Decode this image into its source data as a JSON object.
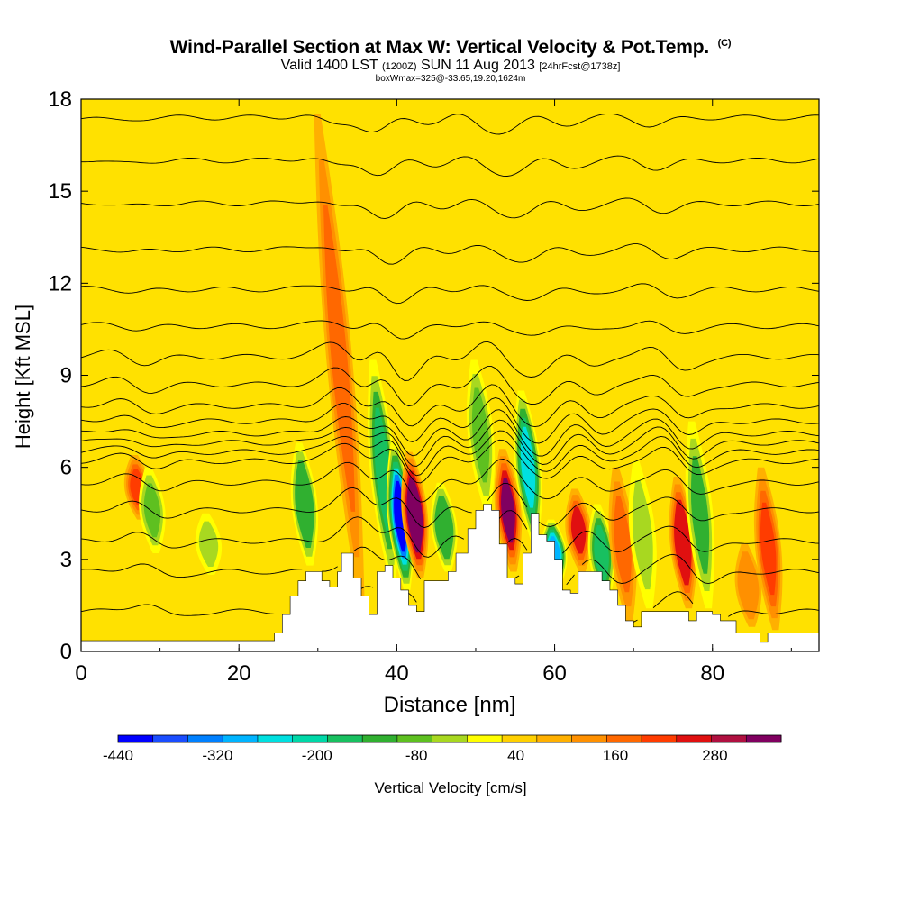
{
  "header": {
    "title": "Wind-Parallel Section at Max W: Vertical Velocity & Pot.Temp.",
    "copyright": "(C)",
    "valid_prefix": "Valid 1400 LST",
    "valid_utc": "(1200Z)",
    "valid_date": "SUN 11 Aug 2013",
    "forecast": "[24hrFcst@1738z]",
    "box_info": "boxWmax=325@-33.65,19.20,1624m"
  },
  "colors": {
    "scale": [
      "#0000ff",
      "#1a4dff",
      "#0080ff",
      "#00b4ff",
      "#00e0e0",
      "#00d8a8",
      "#18c060",
      "#30b030",
      "#5ec020",
      "#a8d820",
      "#ffff00",
      "#ffd000",
      "#ffb000",
      "#ff9000",
      "#ff6800",
      "#ff3c00",
      "#e01010",
      "#b01040",
      "#800060"
    ],
    "background_field": "#ffe100",
    "terrain": "#ffffff"
  },
  "chart_data": {
    "type": "cross-section",
    "title": "Wind-Parallel Section at Max W: Vertical Velocity & Pot.Temp.",
    "xlabel": "Distance [nm]",
    "ylabel": "Height [Kft MSL]",
    "xlim": [
      0,
      93.5
    ],
    "ylim": [
      0,
      18
    ],
    "x_ticks": [
      "0",
      "20",
      "40",
      "60",
      "80"
    ],
    "x_tick_values": [
      0,
      20,
      40,
      60,
      80
    ],
    "y_ticks": [
      "0",
      "3",
      "6",
      "9",
      "12",
      "15",
      "18"
    ],
    "y_tick_values": [
      0,
      3,
      6,
      9,
      12,
      15,
      18
    ],
    "colorbar": {
      "label": "Vertical Velocity [cm/s]",
      "min": -440,
      "max": 320,
      "step": 40,
      "tick_labels": [
        "-440",
        "-320",
        "-200",
        "-80",
        "40",
        "160",
        "280"
      ],
      "tick_values": [
        -440,
        -320,
        -200,
        -80,
        40,
        160,
        280
      ]
    },
    "terrain_height_kft": [
      [
        0,
        0.35
      ],
      [
        10,
        0.35
      ],
      [
        20,
        0.35
      ],
      [
        23.8,
        0.35
      ],
      [
        24.5,
        0.6
      ],
      [
        25.5,
        1.2
      ],
      [
        26.5,
        1.8
      ],
      [
        27.5,
        2.3
      ],
      [
        28.5,
        2.6
      ],
      [
        30,
        2.6
      ],
      [
        30.5,
        2.3
      ],
      [
        31.5,
        2.1
      ],
      [
        32.5,
        2.6
      ],
      [
        33,
        3.2
      ],
      [
        34,
        3.2
      ],
      [
        34.5,
        2.4
      ],
      [
        35.5,
        1.8
      ],
      [
        36.5,
        1.2
      ],
      [
        37.5,
        2.6
      ],
      [
        38.5,
        2.8
      ],
      [
        39.5,
        2.4
      ],
      [
        40.5,
        2.0
      ],
      [
        41.5,
        1.5
      ],
      [
        42.5,
        1.3
      ],
      [
        43.5,
        2.3
      ],
      [
        45,
        2.3
      ],
      [
        46.5,
        2.6
      ],
      [
        47.5,
        3.2
      ],
      [
        49,
        4.0
      ],
      [
        50,
        4.6
      ],
      [
        51,
        4.8
      ],
      [
        52,
        4.6
      ],
      [
        53,
        3.5
      ],
      [
        54,
        2.4
      ],
      [
        55,
        2.2
      ],
      [
        56,
        3.2
      ],
      [
        57,
        4.5
      ],
      [
        58,
        3.8
      ],
      [
        59,
        3.6
      ],
      [
        60,
        3.0
      ],
      [
        61,
        2.0
      ],
      [
        62,
        1.9
      ],
      [
        63,
        2.6
      ],
      [
        65,
        2.6
      ],
      [
        66,
        2.3
      ],
      [
        67,
        2.0
      ],
      [
        68,
        1.5
      ],
      [
        69,
        1.0
      ],
      [
        70,
        0.8
      ],
      [
        71,
        1.3
      ],
      [
        75,
        1.3
      ],
      [
        77,
        1.0
      ],
      [
        78,
        1.3
      ],
      [
        80,
        1.2
      ],
      [
        81,
        1.0
      ],
      [
        83,
        0.6
      ],
      [
        85,
        0.6
      ],
      [
        86,
        0.3
      ],
      [
        87,
        0.6
      ],
      [
        90,
        0.6
      ],
      [
        93.5,
        0.6
      ]
    ],
    "vertical_velocity_features": [
      {
        "x": 7.5,
        "z0": 4.3,
        "z1": 6.4,
        "w": 180
      },
      {
        "x": 9.5,
        "z0": 3.2,
        "z1": 6.0,
        "w": -120
      },
      {
        "x": 16.5,
        "z0": 2.5,
        "z1": 4.5,
        "w": -60
      },
      {
        "x": 29,
        "z0": 2.8,
        "z1": 6.8,
        "w": -150
      },
      {
        "x": 35.5,
        "z0": 1.6,
        "z1": 17.5,
        "w": 120
      },
      {
        "x": 39.5,
        "z0": 2.3,
        "z1": 9.5,
        "w": -200
      },
      {
        "x": 41.3,
        "z0": 2.0,
        "z1": 6.8,
        "w": -440
      },
      {
        "x": 43,
        "z0": 2.4,
        "z1": 6.5,
        "w": 300
      },
      {
        "x": 46.5,
        "z0": 2.6,
        "z1": 5.5,
        "w": -160
      },
      {
        "x": 51.5,
        "z0": 4.6,
        "z1": 9.5,
        "w": -120
      },
      {
        "x": 54.8,
        "z0": 2.6,
        "z1": 6.6,
        "w": 280
      },
      {
        "x": 57.5,
        "z0": 3.5,
        "z1": 8.5,
        "w": -250
      },
      {
        "x": 60.3,
        "z0": 2.1,
        "z1": 4.3,
        "w": -320
      },
      {
        "x": 63.5,
        "z0": 2.6,
        "z1": 5.3,
        "w": 200
      },
      {
        "x": 66.5,
        "z0": 1.6,
        "z1": 4.8,
        "w": -180
      },
      {
        "x": 69.5,
        "z0": 1.0,
        "z1": 6.0,
        "w": 140
      },
      {
        "x": 72,
        "z0": 1.4,
        "z1": 6.2,
        "w": -80
      },
      {
        "x": 77,
        "z0": 1.4,
        "z1": 5.7,
        "w": 220
      },
      {
        "x": 79.5,
        "z0": 1.4,
        "z1": 7.5,
        "w": -130
      },
      {
        "x": 85,
        "z0": 0.8,
        "z1": 3.5,
        "w": 100
      },
      {
        "x": 88,
        "z0": 0.7,
        "z1": 6.0,
        "w": 160
      }
    ],
    "potential_temperature_contours": {
      "note": "isentropes, approx heights (Kft) at the left edge",
      "base_heights_kft": [
        1.3,
        2.6,
        3.6,
        4.6,
        5.5,
        6.2,
        6.5,
        6.8,
        7.1,
        7.5,
        8.0,
        8.7,
        9.6,
        10.6,
        11.8,
        13.1,
        14.6,
        16.0,
        17.4
      ]
    }
  }
}
